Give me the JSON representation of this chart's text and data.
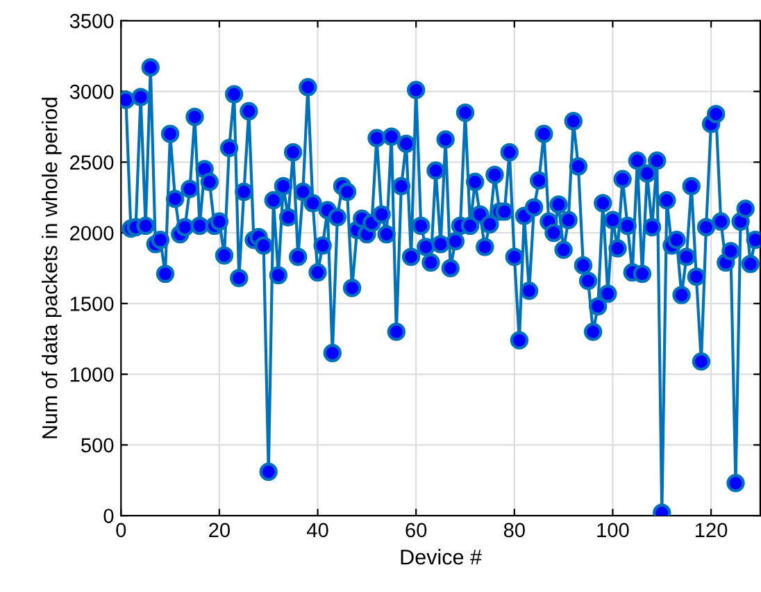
{
  "chart_data": {
    "type": "line",
    "xlabel": "Device #",
    "ylabel": "Num of data packets in whole period",
    "x": [
      1,
      2,
      3,
      4,
      5,
      6,
      7,
      8,
      9,
      10,
      11,
      12,
      13,
      14,
      15,
      16,
      17,
      18,
      19,
      20,
      21,
      22,
      23,
      24,
      25,
      26,
      27,
      28,
      29,
      30,
      31,
      32,
      33,
      34,
      35,
      36,
      37,
      38,
      39,
      40,
      41,
      42,
      43,
      44,
      45,
      46,
      47,
      48,
      49,
      50,
      51,
      52,
      53,
      54,
      55,
      56,
      57,
      58,
      59,
      60,
      61,
      62,
      63,
      64,
      65,
      66,
      67,
      68,
      69,
      70,
      71,
      72,
      73,
      74,
      75,
      76,
      77,
      78,
      79,
      80,
      81,
      82,
      83,
      84,
      85,
      86,
      87,
      88,
      89,
      90,
      91,
      92,
      93,
      94,
      95,
      96,
      97,
      98,
      99,
      100,
      101,
      102,
      103,
      104,
      105,
      106,
      107,
      108,
      109,
      110,
      111,
      112,
      113,
      114,
      115,
      116,
      117,
      118,
      119,
      120,
      121,
      122,
      123,
      124,
      125,
      126,
      127,
      128,
      129
    ],
    "series": [
      {
        "color": "#0072bd",
        "values": [
          2940,
          2030,
          2040,
          2960,
          2050,
          3170,
          1920,
          1950,
          1710,
          2700,
          2240,
          1990,
          2040,
          2310,
          2820,
          2050,
          2450,
          2360,
          2050,
          2080,
          1840,
          2600,
          2980,
          1680,
          2290,
          2860,
          1950,
          1970,
          1910,
          310,
          2230,
          1700,
          2330,
          2110,
          2570,
          1830,
          2290,
          3030,
          2210,
          1720,
          1910,
          2160,
          1150,
          2110,
          2330,
          2290,
          1610,
          2020,
          2100,
          1990,
          2070,
          2670,
          2130,
          1990,
          2680,
          1300,
          2330,
          2630,
          1830,
          3010,
          2050,
          1900,
          1790,
          2440,
          1920,
          2660,
          1750,
          1940,
          2050,
          2850,
          2050,
          2360,
          2130,
          1900,
          2060,
          2410,
          2150,
          2150,
          2570,
          1830,
          1240,
          2120,
          1590,
          2180,
          2370,
          2700,
          2080,
          2000,
          2200,
          1880,
          2090,
          2790,
          2470,
          1770,
          1660,
          1300,
          1480,
          2210,
          1570,
          2090,
          1890,
          2380,
          2050,
          1720,
          2510,
          1710,
          2420,
          2040,
          2510,
          20,
          2230,
          1910,
          1950,
          1560,
          1830,
          2330,
          1690,
          1090,
          2040,
          2770,
          2840,
          2080,
          1790,
          1870,
          230,
          2080,
          2170,
          1780,
          1950
        ]
      }
    ],
    "xlim": [
      0,
      130
    ],
    "ylim": [
      0,
      3500
    ],
    "xticks": [
      0,
      20,
      40,
      60,
      80,
      100,
      120
    ],
    "yticks": [
      0,
      500,
      1000,
      1500,
      2000,
      2500,
      3000,
      3500
    ],
    "grid": true,
    "marker": "circle",
    "line_style": "solid"
  }
}
